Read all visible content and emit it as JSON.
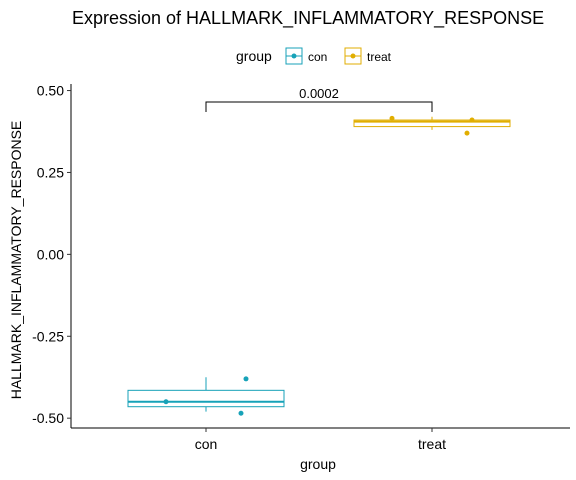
{
  "chart_data": {
    "type": "boxplot",
    "title": "Expression of HALLMARK_INFLAMMATORY_RESPONSE",
    "xlabel": "group",
    "ylabel": "HALLMARK_INFLAMMATORY_RESPONSE",
    "ylim": [
      -0.53,
      0.52
    ],
    "yticks": [
      0.5,
      0.25,
      0.0,
      -0.25,
      -0.5
    ],
    "ytick_labels": [
      "0.50",
      "0.25",
      "0.00",
      "-0.25",
      "-0.50"
    ],
    "categories": [
      "con",
      "treat"
    ],
    "legend": {
      "title": "group",
      "position": "top",
      "entries": [
        "con",
        "treat"
      ]
    },
    "colors": {
      "con": "#17A2B8",
      "treat": "#E1AE00"
    },
    "series": [
      {
        "name": "con",
        "box": {
          "min": -0.48,
          "q1": -0.465,
          "median": -0.45,
          "q3": -0.415,
          "max": -0.375
        },
        "points": [
          -0.45,
          -0.38,
          -0.485
        ]
      },
      {
        "name": "treat",
        "box": {
          "min": 0.38,
          "q1": 0.39,
          "median": 0.405,
          "q3": 0.41,
          "max": 0.42
        },
        "points": [
          0.415,
          0.41,
          0.37
        ]
      }
    ],
    "annotation": {
      "text": "0.0002",
      "between": [
        "con",
        "treat"
      ],
      "y": 0.465
    }
  }
}
